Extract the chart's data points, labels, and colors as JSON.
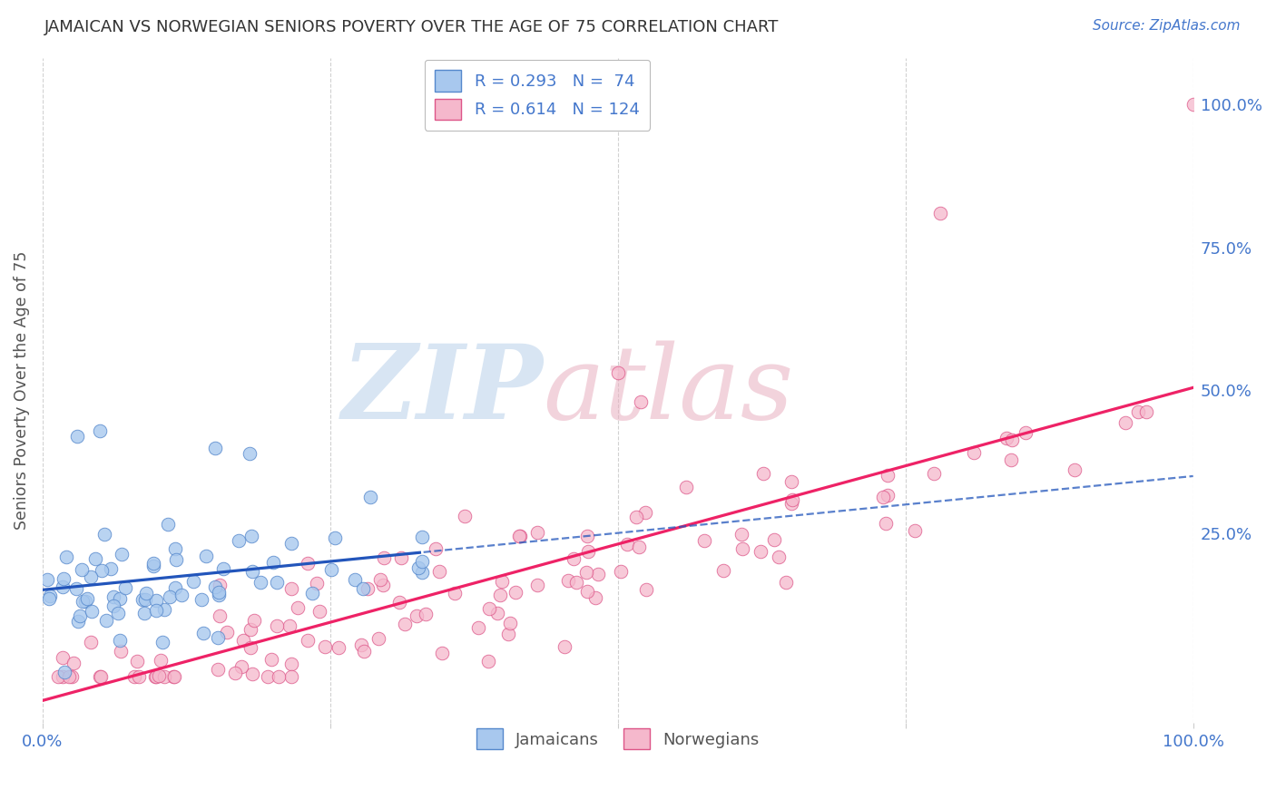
{
  "title": "JAMAICAN VS NORWEGIAN SENIORS POVERTY OVER THE AGE OF 75 CORRELATION CHART",
  "source": "Source: ZipAtlas.com",
  "ylabel": "Seniors Poverty Over the Age of 75",
  "r_jamaican": 0.293,
  "n_jamaican": 74,
  "r_norwegian": 0.614,
  "n_norwegian": 124,
  "jamaican_dot_color": "#a8c8ee",
  "norwegian_dot_color": "#f5b8cc",
  "jamaican_edge_color": "#5588cc",
  "norwegian_edge_color": "#dd5588",
  "jamaican_line_color": "#2255bb",
  "norwegian_line_color": "#ee2266",
  "title_color": "#333333",
  "axis_label_color": "#555555",
  "tick_color": "#4477cc",
  "grid_color": "#cccccc",
  "background_color": "#ffffff",
  "watermark_zip_color": "#b8d0ea",
  "watermark_atlas_color": "#e8b0c0",
  "legend_edge_color": "#bbbbbb"
}
